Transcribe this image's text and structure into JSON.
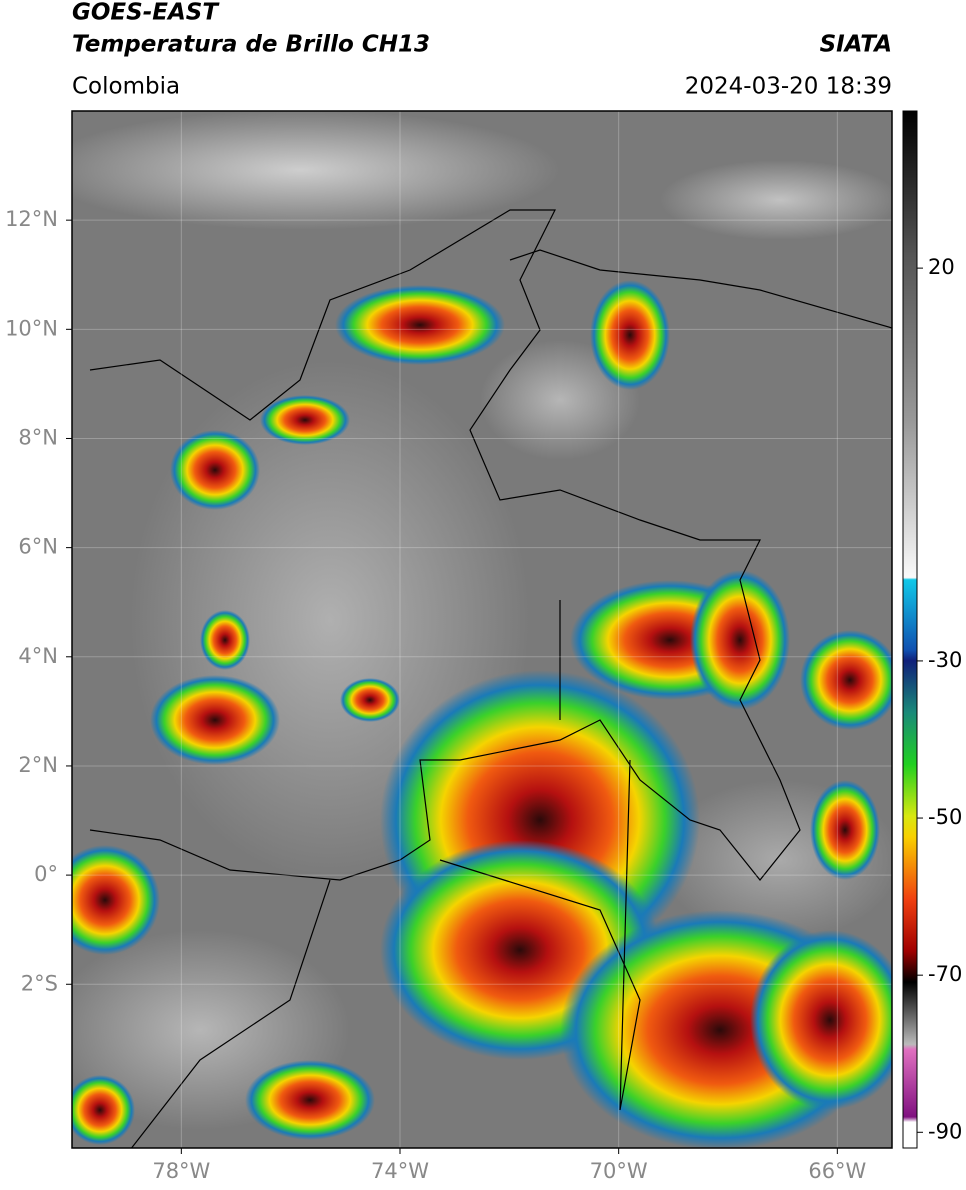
{
  "header": {
    "satellite": "GOES-EAST",
    "product": "Temperatura de Brillo CH13",
    "region": "Colombia",
    "source": "SIATA",
    "timestamp": "2024-03-20 18:39"
  },
  "map": {
    "xlim": [
      -80,
      -65
    ],
    "ylim": [
      -5,
      14
    ],
    "xticks": [
      {
        "value": -78,
        "label": "78°W"
      },
      {
        "value": -74,
        "label": "74°W"
      },
      {
        "value": -70,
        "label": "70°W"
      },
      {
        "value": -66,
        "label": "66°W"
      }
    ],
    "yticks": [
      {
        "value": 12,
        "label": "12°N"
      },
      {
        "value": 10,
        "label": "10°N"
      },
      {
        "value": 8,
        "label": "8°N"
      },
      {
        "value": 6,
        "label": "6°N"
      },
      {
        "value": 4,
        "label": "4°N"
      },
      {
        "value": 2,
        "label": "2°N"
      },
      {
        "value": 0,
        "label": "0°"
      },
      {
        "value": -2,
        "label": "2°S"
      }
    ]
  },
  "colorbar": {
    "lim": [
      -92,
      40
    ],
    "ticks": [
      20,
      -30,
      -50,
      -70,
      -90
    ]
  }
}
